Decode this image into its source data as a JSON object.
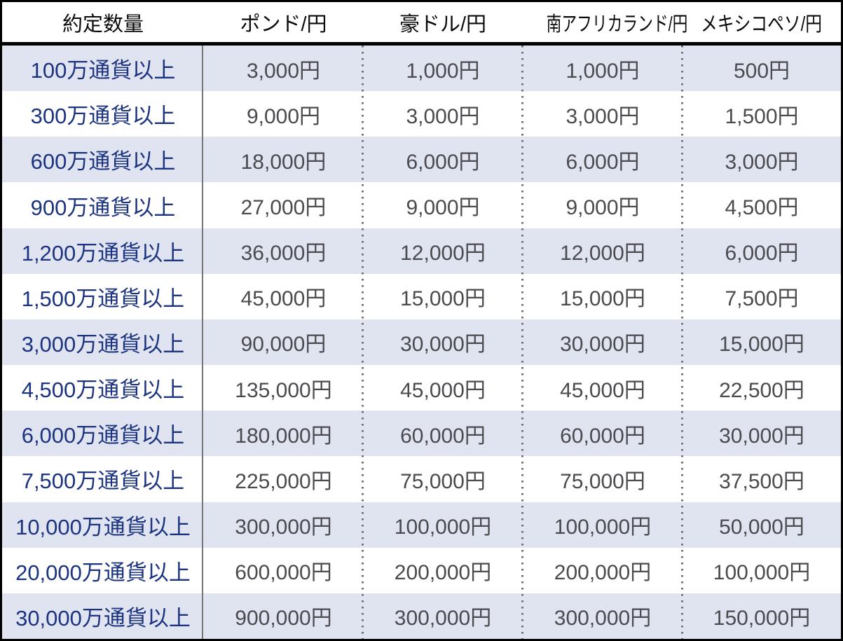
{
  "table": {
    "columns": [
      "約定数量",
      "ポンド/円",
      "豪ドル/円",
      "南アフリカランド/円",
      "メキシコペソ/円"
    ],
    "rows": [
      {
        "quantity": "100万通貨以上",
        "values": [
          "3,000円",
          "1,000円",
          "1,000円",
          "500円"
        ]
      },
      {
        "quantity": "300万通貨以上",
        "values": [
          "9,000円",
          "3,000円",
          "3,000円",
          "1,500円"
        ]
      },
      {
        "quantity": "600万通貨以上",
        "values": [
          "18,000円",
          "6,000円",
          "6,000円",
          "3,000円"
        ]
      },
      {
        "quantity": "900万通貨以上",
        "values": [
          "27,000円",
          "9,000円",
          "9,000円",
          "4,500円"
        ]
      },
      {
        "quantity": "1,200万通貨以上",
        "values": [
          "36,000円",
          "12,000円",
          "12,000円",
          "6,000円"
        ]
      },
      {
        "quantity": "1,500万通貨以上",
        "values": [
          "45,000円",
          "15,000円",
          "15,000円",
          "7,500円"
        ]
      },
      {
        "quantity": "3,000万通貨以上",
        "values": [
          "90,000円",
          "30,000円",
          "30,000円",
          "15,000円"
        ]
      },
      {
        "quantity": "4,500万通貨以上",
        "values": [
          "135,000円",
          "45,000円",
          "45,000円",
          "22,500円"
        ]
      },
      {
        "quantity": "6,000万通貨以上",
        "values": [
          "180,000円",
          "60,000円",
          "60,000円",
          "30,000円"
        ]
      },
      {
        "quantity": "7,500万通貨以上",
        "values": [
          "225,000円",
          "75,000円",
          "75,000円",
          "37,500円"
        ]
      },
      {
        "quantity": "10,000万通貨以上",
        "values": [
          "300,000円",
          "100,000円",
          "100,000円",
          "50,000円"
        ]
      },
      {
        "quantity": "20,000万通貨以上",
        "values": [
          "600,000円",
          "200,000円",
          "200,000円",
          "100,000円"
        ]
      },
      {
        "quantity": "30,000万通貨以上",
        "values": [
          "900,000円",
          "300,000円",
          "300,000円",
          "150,000円"
        ]
      }
    ]
  },
  "colors": {
    "row_shade": "#e0e3f0",
    "quantity_text": "#1c3480",
    "value_text": "#4a4a4f",
    "header_text": "#0a0a0a",
    "frame": "#000000",
    "divider_solid": "#76767a",
    "divider_dotted": "#6f6f74"
  }
}
